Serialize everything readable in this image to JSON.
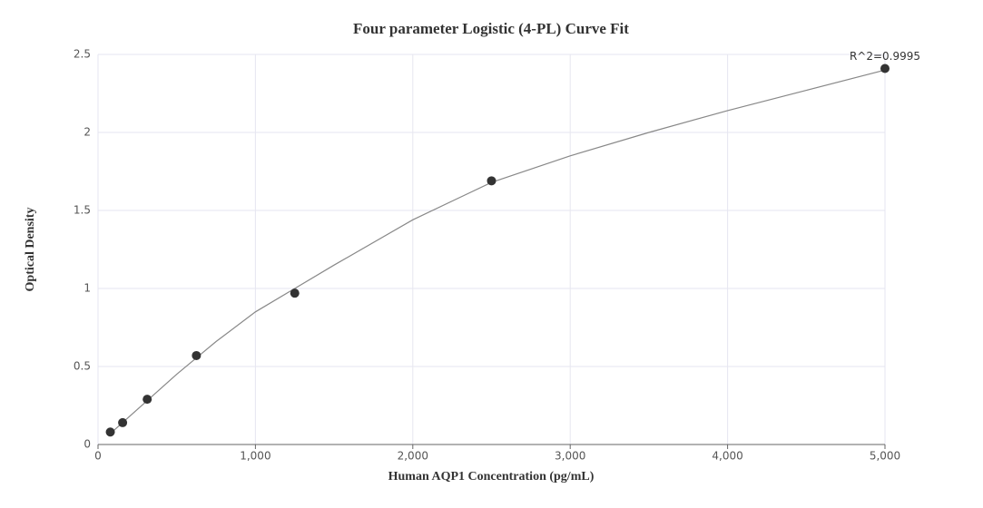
{
  "chart_data": {
    "type": "scatter",
    "title": "Four parameter Logistic (4-PL) Curve Fit",
    "x_label": "Human AQP1 Concentration (pg/mL)",
    "y_label": "Optical Density",
    "annotation": "R^2=0.9995",
    "x": [
      78.125,
      156.25,
      312.5,
      625,
      1250,
      2500,
      5000
    ],
    "values": [
      0.08,
      0.14,
      0.29,
      0.57,
      0.97,
      1.69,
      2.41
    ],
    "color": "#333333",
    "curve": {
      "x": [
        78.125,
        300,
        500,
        750,
        1000,
        1250,
        1500,
        2000,
        2500,
        3000,
        3500,
        4000,
        4500,
        5000
      ],
      "y": [
        0.07,
        0.27,
        0.45,
        0.66,
        0.85,
        1.0,
        1.15,
        1.44,
        1.68,
        1.85,
        2.0,
        2.14,
        2.27,
        2.4
      ],
      "color": "#888888"
    },
    "xlim": [
      0,
      5000
    ],
    "ylim": [
      0,
      2.5
    ],
    "xticks": [
      0,
      {
        "value": 1000,
        "label": "1,000"
      },
      {
        "value": 2000,
        "label": "2,000"
      },
      {
        "value": 3000,
        "label": "3,000"
      },
      {
        "value": 4000,
        "label": "4,000"
      },
      {
        "value": 5000,
        "label": "5,000"
      }
    ],
    "yticks": [
      0,
      0.5,
      1,
      1.5,
      2,
      2.5
    ],
    "grid": true
  }
}
